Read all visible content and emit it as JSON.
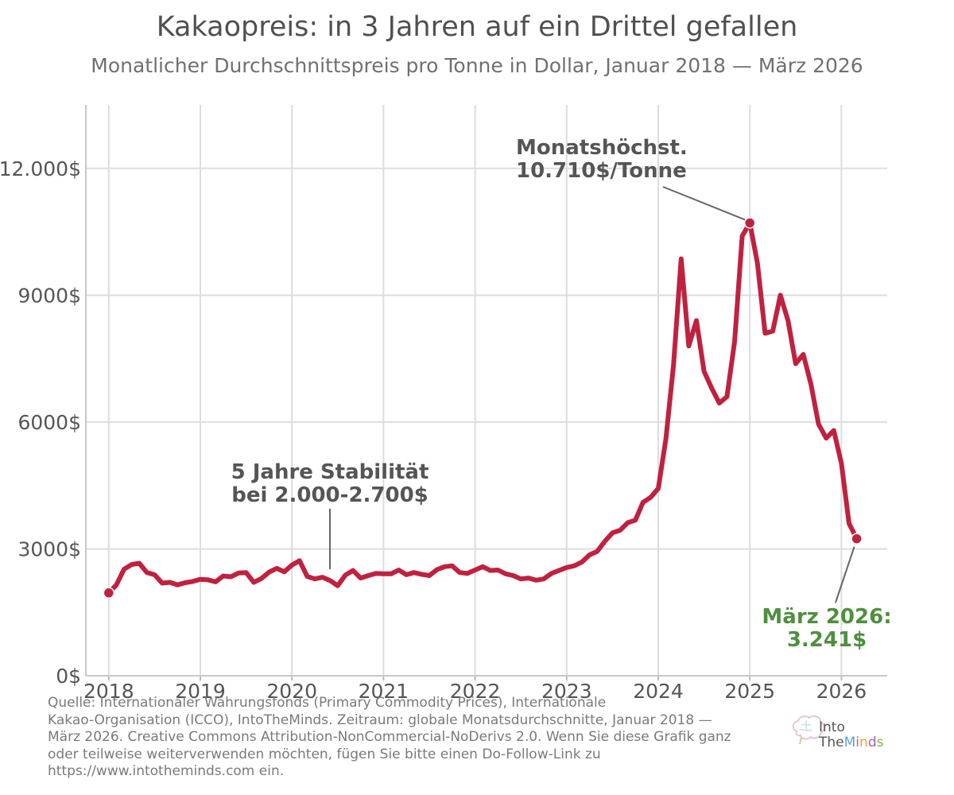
{
  "header": {
    "title": "Kakaopreis: in 3 Jahren auf ein Drittel gefallen",
    "subtitle": "Monatlicher Durchschnittspreis pro Tonne in Dollar, Januar 2018 — März 2026"
  },
  "colors": {
    "line": "#c0213f",
    "annotation_text": "#555555",
    "highlight_text": "#4f8f3f",
    "grid": "#dddddd",
    "axis_text": "#555555"
  },
  "chart_data": {
    "type": "line",
    "title": "Kakaopreis: in 3 Jahren auf ein Drittel gefallen",
    "subtitle": "Monatlicher Durchschnittspreis pro Tonne in Dollar, Januar 2018 — März 2026",
    "xlabel": "",
    "ylabel": "",
    "xlim": [
      "2017-10",
      "2026-07"
    ],
    "ylim": [
      0,
      13500
    ],
    "grid": true,
    "x_ticks": [
      {
        "x": "2018-01",
        "label": "2018"
      },
      {
        "x": "2019-01",
        "label": "2019"
      },
      {
        "x": "2020-01",
        "label": "2020"
      },
      {
        "x": "2021-01",
        "label": "2021"
      },
      {
        "x": "2022-01",
        "label": "2022"
      },
      {
        "x": "2023-01",
        "label": "2023"
      },
      {
        "x": "2024-01",
        "label": "2024"
      },
      {
        "x": "2025-01",
        "label": "2025"
      },
      {
        "x": "2026-01",
        "label": "2026"
      }
    ],
    "y_ticks": [
      {
        "y": 0,
        "label": "0$"
      },
      {
        "y": 3000,
        "label": "3000$"
      },
      {
        "y": 6000,
        "label": "6000$"
      },
      {
        "y": 9000,
        "label": "9000$"
      },
      {
        "y": 12000,
        "label": "12.000$"
      }
    ],
    "series": [
      {
        "x": [
          "2018-01",
          "2018-02",
          "2018-03",
          "2018-04",
          "2018-05",
          "2018-06",
          "2018-07",
          "2018-08",
          "2018-09",
          "2018-10",
          "2018-11",
          "2018-12",
          "2019-01",
          "2019-02",
          "2019-03",
          "2019-04",
          "2019-05",
          "2019-06",
          "2019-07",
          "2019-08",
          "2019-09",
          "2019-10",
          "2019-11",
          "2019-12",
          "2020-01",
          "2020-02",
          "2020-03",
          "2020-04",
          "2020-05",
          "2020-06",
          "2020-07",
          "2020-08",
          "2020-09",
          "2020-10",
          "2020-11",
          "2020-12",
          "2021-01",
          "2021-02",
          "2021-03",
          "2021-04",
          "2021-05",
          "2021-06",
          "2021-07",
          "2021-08",
          "2021-09",
          "2021-10",
          "2021-11",
          "2021-12",
          "2022-01",
          "2022-02",
          "2022-03",
          "2022-04",
          "2022-05",
          "2022-06",
          "2022-07",
          "2022-08",
          "2022-09",
          "2022-10",
          "2022-11",
          "2022-12",
          "2023-01",
          "2023-02",
          "2023-03",
          "2023-04",
          "2023-05",
          "2023-06",
          "2023-07",
          "2023-08",
          "2023-09",
          "2023-10",
          "2023-11",
          "2023-12",
          "2024-01",
          "2024-02",
          "2024-03",
          "2024-04",
          "2024-05",
          "2024-06",
          "2024-07",
          "2024-08",
          "2024-09",
          "2024-10",
          "2024-11",
          "2024-12",
          "2025-01",
          "2025-02",
          "2025-03",
          "2025-04",
          "2025-05",
          "2025-06",
          "2025-07",
          "2025-08",
          "2025-09",
          "2025-10",
          "2025-11",
          "2025-12",
          "2026-01",
          "2026-02",
          "2026-03"
        ],
        "values": [
          1960,
          2150,
          2520,
          2630,
          2660,
          2440,
          2390,
          2190,
          2210,
          2150,
          2200,
          2230,
          2280,
          2270,
          2220,
          2360,
          2340,
          2430,
          2440,
          2210,
          2300,
          2450,
          2540,
          2460,
          2620,
          2720,
          2350,
          2290,
          2330,
          2250,
          2130,
          2380,
          2490,
          2310,
          2370,
          2420,
          2410,
          2410,
          2500,
          2390,
          2440,
          2400,
          2370,
          2510,
          2580,
          2600,
          2440,
          2420,
          2500,
          2580,
          2490,
          2500,
          2410,
          2370,
          2290,
          2310,
          2260,
          2290,
          2420,
          2490,
          2560,
          2600,
          2690,
          2860,
          2940,
          3180,
          3380,
          3440,
          3620,
          3680,
          4100,
          4220,
          4430,
          5600,
          7350,
          9860,
          7800,
          8400,
          7200,
          6800,
          6450,
          6600,
          7900,
          10400,
          10710,
          9750,
          8100,
          8150,
          9000,
          8400,
          7380,
          7600,
          6900,
          5950,
          5620,
          5800,
          5020,
          3600,
          3241
        ]
      }
    ],
    "points": [
      {
        "x": "2018-01",
        "y": 1960
      },
      {
        "x": "2025-01",
        "y": 10710
      },
      {
        "x": "2026-03",
        "y": 3241
      }
    ],
    "annotations": [
      {
        "lines": [
          "Monatshöchst.",
          "10.710$/Tonne"
        ],
        "target": {
          "x": "2025-01",
          "y": 10710
        }
      },
      {
        "lines": [
          "5 Jahre Stabilität",
          "bei 2.000-2.700$"
        ],
        "target": {
          "x": "2020-06",
          "y": 2600
        }
      },
      {
        "lines": [
          "März 2026:",
          "3.241$"
        ],
        "target": {
          "x": "2026-03",
          "y": 3241
        }
      }
    ]
  },
  "footer": {
    "source_lines": [
      "Quelle: Internationaler Währungsfonds (Primary Commodity Prices), Internationale",
      "Kakao-Organisation (ICCO), IntoTheMinds. Zeitraum: globale Monatsdurchschnitte, Januar 2018 —",
      "März 2026. Creative Commons Attribution-NonCommercial-NoDerivs 2.0. Wenn Sie diese Grafik ganz",
      "oder teilweise weiterverwenden möchten, fügen Sie bitte einen Do-Follow-Link zu",
      "https://www.intotheminds.com ein."
    ],
    "logo": {
      "line1": "Into",
      "line2_parts": [
        "The",
        "M",
        "i",
        "n",
        "d",
        "s"
      ],
      "colors": [
        "#555555",
        "#5aa7d6",
        "#e0528a",
        "#f0a030",
        "#9a63c4",
        "#7bb53d"
      ],
      "icon": "brain-icon"
    }
  }
}
